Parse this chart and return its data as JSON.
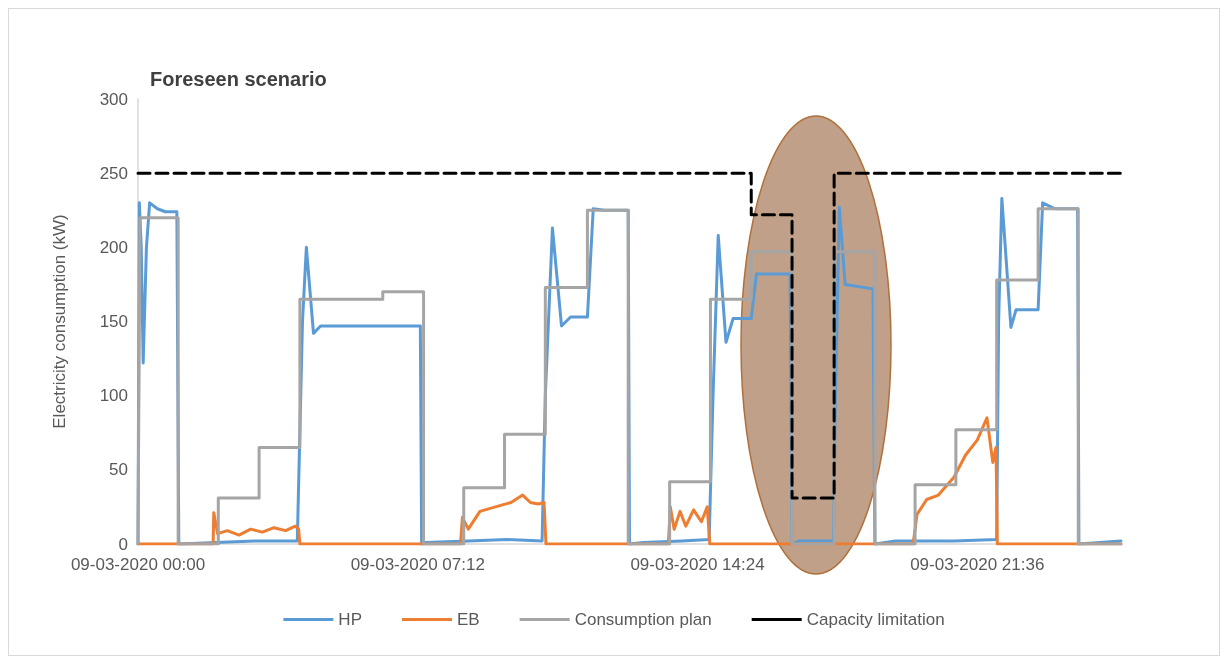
{
  "chart_data": {
    "type": "line",
    "title": "Foreseen scenario",
    "ylabel": "Electricity consumption (kW)",
    "xlim": [
      "2020-03-09T00:00",
      "2020-03-10T01:18"
    ],
    "xticks": [
      {
        "value": "2020-03-09T00:00",
        "label": "09-03-2020 00:00"
      },
      {
        "value": "2020-03-09T07:12",
        "label": "09-03-2020 07:12"
      },
      {
        "value": "2020-03-09T14:24",
        "label": "09-03-2020 14:24"
      },
      {
        "value": "2020-03-09T21:36",
        "label": "09-03-2020 21:36"
      }
    ],
    "ylim": [
      0,
      300
    ],
    "yticks": [
      0,
      50,
      100,
      150,
      200,
      250,
      300
    ],
    "grid": false,
    "legend": "bottom",
    "marker": "none",
    "series": [
      {
        "name": "HP",
        "color": "#5b9bd5",
        "line_style": "solid",
        "x": [
          "2020-03-09T00:00",
          "2020-03-09T00:02",
          "2020-03-09T00:05",
          "2020-03-09T00:08",
          "2020-03-09T00:13",
          "2020-03-09T00:18",
          "2020-03-09T00:30",
          "2020-03-09T00:42",
          "2020-03-09T01:00",
          "2020-03-09T01:03",
          "2020-03-09T01:06",
          "2020-03-09T02:00",
          "2020-03-09T03:00",
          "2020-03-09T04:06",
          "2020-03-09T04:14",
          "2020-03-09T04:20",
          "2020-03-09T04:31",
          "2020-03-09T04:42",
          "2020-03-09T06:00",
          "2020-03-09T07:16",
          "2020-03-09T07:18",
          "2020-03-09T07:24",
          "2020-03-09T08:30",
          "2020-03-09T09:30",
          "2020-03-09T10:24",
          "2020-03-09T10:29",
          "2020-03-09T10:40",
          "2020-03-09T10:54",
          "2020-03-09T11:08",
          "2020-03-09T11:34",
          "2020-03-09T11:43",
          "2020-03-09T12:00",
          "2020-03-09T12:37",
          "2020-03-09T12:39",
          "2020-03-09T13:00",
          "2020-03-09T14:00",
          "2020-03-09T14:42",
          "2020-03-09T14:48",
          "2020-03-09T14:56",
          "2020-03-09T15:08",
          "2020-03-09T15:19",
          "2020-03-09T15:47",
          "2020-03-09T15:55",
          "2020-03-09T16:47",
          "2020-03-09T16:50",
          "2020-03-09T17:00",
          "2020-03-09T17:54",
          "2020-03-09T17:57",
          "2020-03-09T18:03",
          "2020-03-09T18:12",
          "2020-03-09T18:55",
          "2020-03-09T18:58",
          "2020-03-09T19:30",
          "2020-03-09T21:00",
          "2020-03-09T22:06",
          "2020-03-09T22:09",
          "2020-03-09T22:14",
          "2020-03-09T22:28",
          "2020-03-09T22:36",
          "2020-03-09T23:10",
          "2020-03-09T23:17",
          "2020-03-09T23:36",
          "2020-03-10T00:11",
          "2020-03-10T00:13",
          "2020-03-10T01:18"
        ],
        "values": [
          0,
          230,
          200,
          122,
          200,
          230,
          226,
          224,
          224,
          0,
          0,
          1,
          2,
          2,
          150,
          200,
          142,
          147,
          147,
          147,
          0,
          1,
          2,
          3,
          2,
          100,
          213,
          147,
          153,
          153,
          226,
          225,
          225,
          0,
          1,
          2,
          3,
          100,
          208,
          136,
          152,
          152,
          182,
          182,
          0,
          2,
          2,
          100,
          227,
          175,
          172,
          0,
          2,
          2,
          3,
          150,
          233,
          146,
          158,
          158,
          230,
          226,
          226,
          0,
          2
        ]
      },
      {
        "name": "EB",
        "color": "#ed7d31",
        "line_style": "solid",
        "x": [
          "2020-03-09T00:00",
          "2020-03-09T01:56",
          "2020-03-09T01:57",
          "2020-03-09T02:03",
          "2020-03-09T02:18",
          "2020-03-09T02:36",
          "2020-03-09T02:54",
          "2020-03-09T03:12",
          "2020-03-09T03:30",
          "2020-03-09T03:48",
          "2020-03-09T04:03",
          "2020-03-09T04:08",
          "2020-03-09T04:10",
          "2020-03-09T08:18",
          "2020-03-09T08:21",
          "2020-03-09T08:30",
          "2020-03-09T08:48",
          "2020-03-09T09:12",
          "2020-03-09T09:36",
          "2020-03-09T09:54",
          "2020-03-09T10:06",
          "2020-03-09T10:18",
          "2020-03-09T10:27",
          "2020-03-09T10:30",
          "2020-03-09T13:39",
          "2020-03-09T13:42",
          "2020-03-09T13:48",
          "2020-03-09T13:57",
          "2020-03-09T14:06",
          "2020-03-09T14:18",
          "2020-03-09T14:30",
          "2020-03-09T14:39",
          "2020-03-09T14:43",
          "2020-03-09T19:57",
          "2020-03-09T20:03",
          "2020-03-09T20:18",
          "2020-03-09T20:36",
          "2020-03-09T21:00",
          "2020-03-09T21:18",
          "2020-03-09T21:36",
          "2020-03-09T21:51",
          "2020-03-09T22:00",
          "2020-03-09T22:05",
          "2020-03-09T22:07",
          "2020-03-10T01:18"
        ],
        "values": [
          0,
          0,
          21,
          7,
          9,
          6,
          10,
          8,
          11,
          9,
          12,
          10,
          0,
          0,
          18,
          10,
          22,
          25,
          28,
          33,
          28,
          27,
          28,
          0,
          0,
          25,
          10,
          22,
          12,
          23,
          15,
          25,
          0,
          0,
          20,
          30,
          33,
          45,
          60,
          70,
          85,
          55,
          65,
          0,
          0
        ]
      },
      {
        "name": "Consumption plan",
        "color": "#a5a5a5",
        "line_style": "solid",
        "x": [
          "2020-03-09T00:00",
          "2020-03-09T00:03",
          "2020-03-09T01:02",
          "2020-03-09T01:02",
          "2020-03-09T02:04",
          "2020-03-09T02:04",
          "2020-03-09T03:07",
          "2020-03-09T03:07",
          "2020-03-09T04:10",
          "2020-03-09T04:10",
          "2020-03-09T06:18",
          "2020-03-09T06:18",
          "2020-03-09T07:21",
          "2020-03-09T07:21",
          "2020-03-09T08:23",
          "2020-03-09T08:23",
          "2020-03-09T09:26",
          "2020-03-09T09:26",
          "2020-03-09T10:29",
          "2020-03-09T10:29",
          "2020-03-09T11:34",
          "2020-03-09T11:34",
          "2020-03-09T12:37",
          "2020-03-09T12:37",
          "2020-03-09T13:41",
          "2020-03-09T13:41",
          "2020-03-09T14:44",
          "2020-03-09T14:44",
          "2020-03-09T15:47",
          "2020-03-09T15:47",
          "2020-03-09T16:50",
          "2020-03-09T16:50",
          "2020-03-09T17:55",
          "2020-03-09T17:55",
          "2020-03-09T18:58",
          "2020-03-09T18:58",
          "2020-03-09T20:00",
          "2020-03-09T20:00",
          "2020-03-09T21:03",
          "2020-03-09T21:03",
          "2020-03-09T22:06",
          "2020-03-09T22:06",
          "2020-03-09T23:10",
          "2020-03-09T23:10",
          "2020-03-10T00:12",
          "2020-03-10T00:12",
          "2020-03-10T01:18"
        ],
        "values": [
          0,
          220,
          220,
          0,
          0,
          31,
          31,
          65,
          65,
          165,
          165,
          170,
          170,
          0,
          0,
          38,
          38,
          74,
          74,
          173,
          173,
          225,
          225,
          0,
          0,
          42,
          42,
          165,
          165,
          197,
          197,
          0,
          0,
          197,
          197,
          0,
          0,
          40,
          40,
          77,
          77,
          178,
          178,
          226,
          226,
          0,
          0
        ]
      },
      {
        "name": "Capacity limitation",
        "color": "#000000",
        "line_style": "dashed",
        "x": [
          "2020-03-09T00:00",
          "2020-03-09T15:47",
          "2020-03-09T15:47",
          "2020-03-09T16:50",
          "2020-03-09T16:50",
          "2020-03-09T17:55",
          "2020-03-09T17:55",
          "2020-03-10T01:18"
        ],
        "values": [
          250,
          250,
          222,
          222,
          31,
          31,
          250,
          250
        ]
      }
    ]
  }
}
